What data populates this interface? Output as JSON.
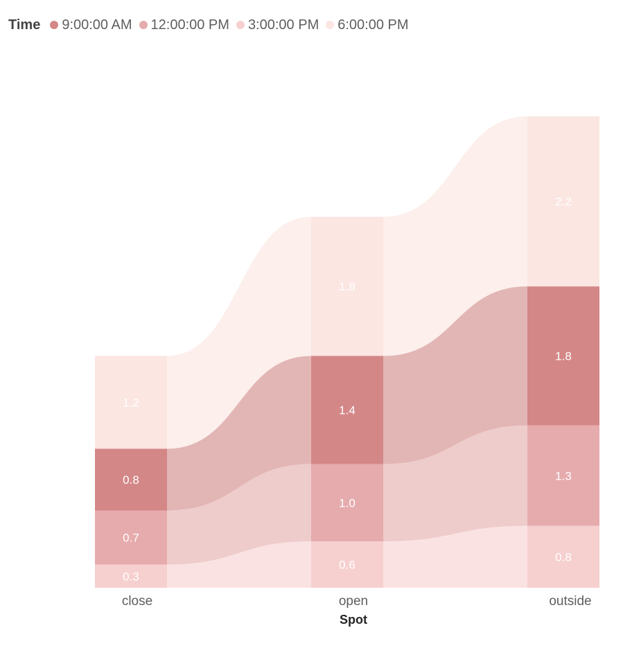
{
  "chart_data": {
    "type": "ribbon",
    "legend": {
      "title": "Time",
      "entries": [
        {
          "name": "9:00:00 AM",
          "color": "#d48787"
        },
        {
          "name": "12:00:00 PM",
          "color": "#e6abad"
        },
        {
          "name": "3:00:00 PM",
          "color": "#f6d0cf"
        },
        {
          "name": "6:00:00 PM",
          "color": "#fbe6e2"
        }
      ]
    },
    "categories": [
      "close",
      "open",
      "outside"
    ],
    "xlabel": "Spot",
    "ylabel": "",
    "series": [
      {
        "name": "9:00:00 AM",
        "values": [
          0.8,
          1.4,
          1.8
        ]
      },
      {
        "name": "12:00:00 PM",
        "values": [
          0.7,
          1.0,
          1.3
        ]
      },
      {
        "name": "3:00:00 PM",
        "values": [
          0.3,
          0.6,
          0.8
        ]
      },
      {
        "name": "6:00:00 PM",
        "values": [
          1.2,
          1.8,
          2.2
        ]
      }
    ],
    "data_labels": {
      "9:00:00 AM": [
        "0.8",
        "1.4",
        "1.8"
      ],
      "12:00:00 PM": [
        "0.7",
        "1.0",
        "1.3"
      ],
      "3:00:00 PM": [
        "0.3",
        "0.6",
        "0.8"
      ],
      "6:00:00 PM": [
        "1.2",
        "1.8",
        "2.2"
      ]
    }
  }
}
